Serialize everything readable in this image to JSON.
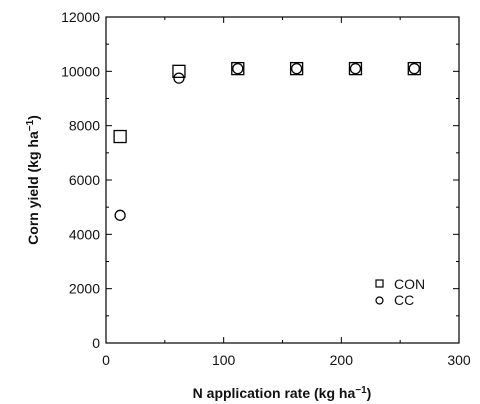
{
  "chart_data": {
    "type": "scatter",
    "xlabel": "N application rate (kg ha",
    "xlabel_sup": "−1",
    "xlabel_end": ")",
    "ylabel": "Corn yield (kg ha",
    "ylabel_sup": "−1",
    "ylabel_end": ")",
    "xlim": [
      0,
      300
    ],
    "ylim": [
      0,
      12000
    ],
    "xticks": [
      0,
      100,
      200,
      300
    ],
    "xtick_labels": [
      "0",
      "100",
      "200",
      "300"
    ],
    "yticks": [
      0,
      2000,
      4000,
      6000,
      8000,
      10000,
      12000
    ],
    "ytick_labels": [
      "0",
      "2000",
      "4000",
      "6000",
      "8000",
      "10000",
      "12000"
    ],
    "grid": false,
    "legend_position": "bottom-right",
    "series": [
      {
        "name": "CON",
        "marker": "square",
        "x": [
          12,
          62,
          112,
          162,
          212,
          262
        ],
        "y": [
          7600,
          10000,
          10100,
          10100,
          10100,
          10100
        ]
      },
      {
        "name": "CC",
        "marker": "circle",
        "x": [
          12,
          62,
          112,
          162,
          212,
          262
        ],
        "y": [
          4700,
          9750,
          10100,
          10100,
          10100,
          10100
        ]
      }
    ]
  }
}
